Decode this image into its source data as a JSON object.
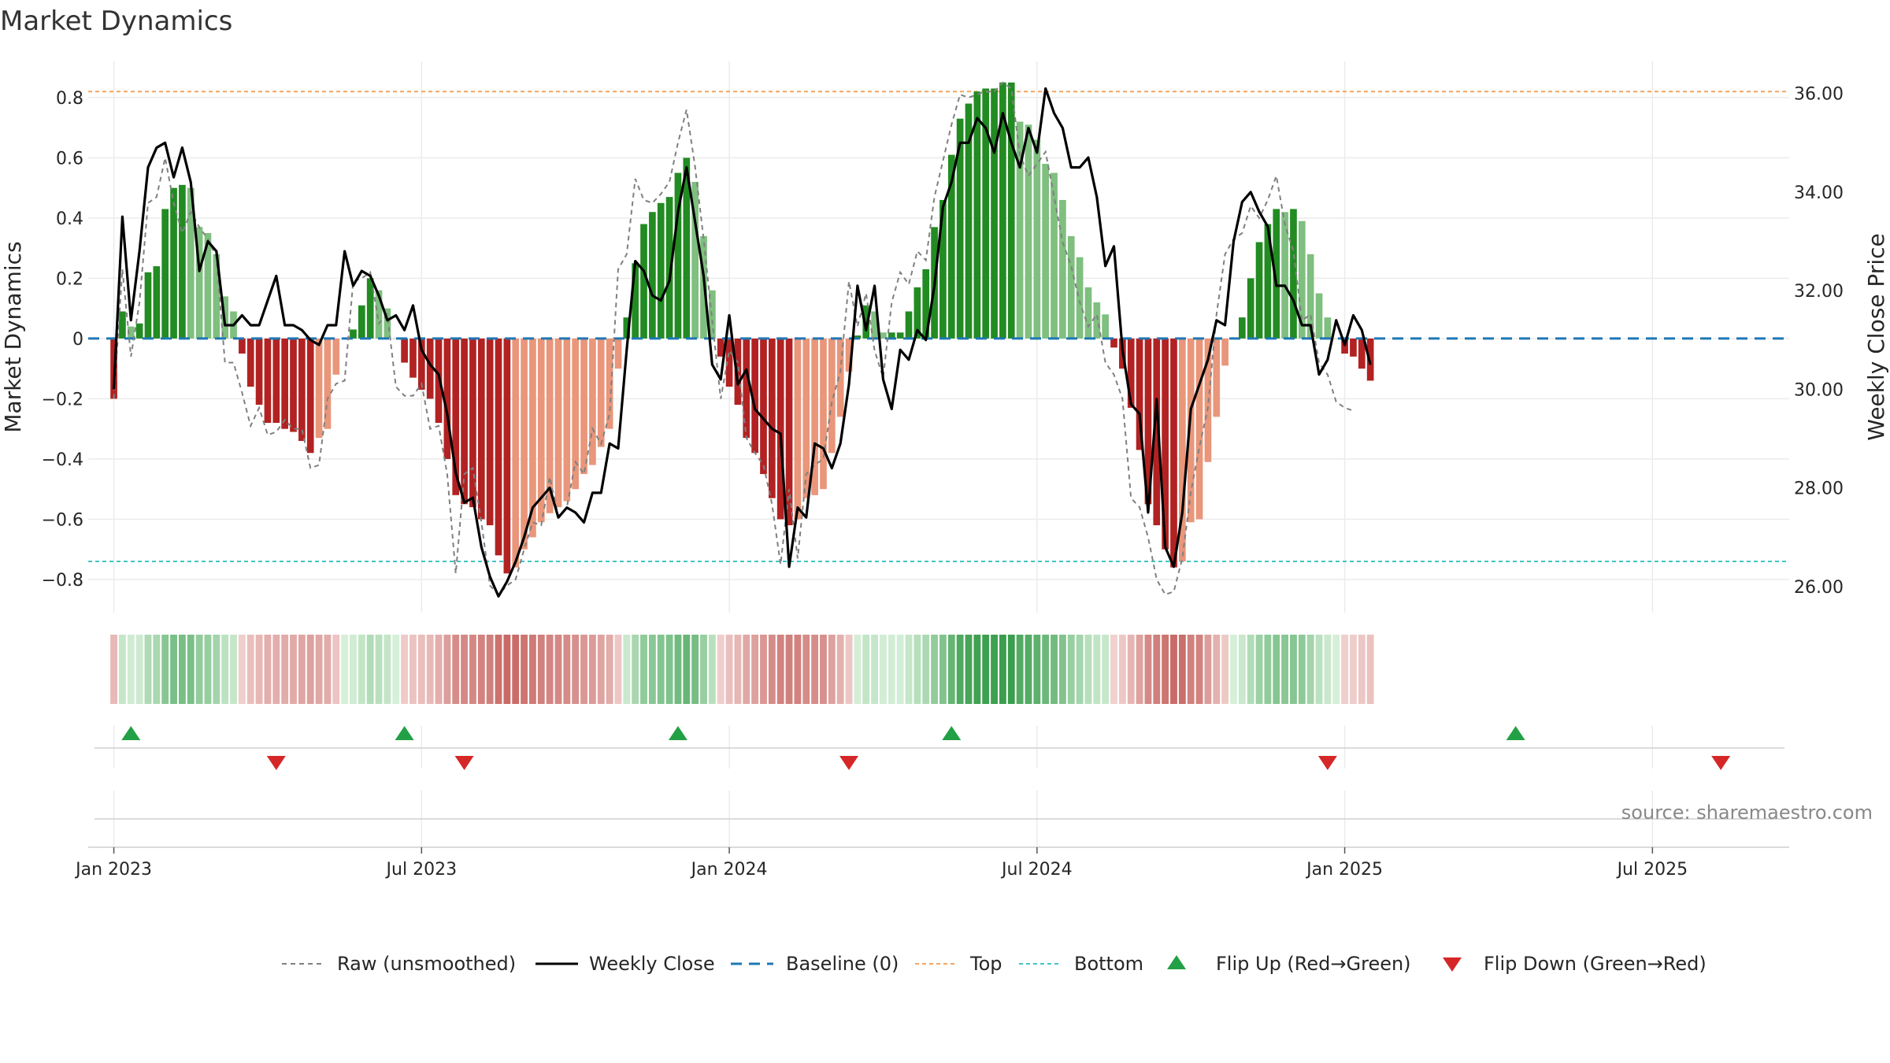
{
  "title": "Market Dynamics",
  "source": "source: sharemaestro.com",
  "colors": {
    "strong_green": "#228b22",
    "light_green": "#7fbf7f",
    "strong_red": "#b22222",
    "light_red": "#e9967a",
    "raw": "#808080",
    "close": "#000000",
    "baseline": "#1f77b4",
    "top": "#f4a460",
    "bottom": "#40c4c4",
    "flip_up": "#22a045",
    "flip_down": "#d62728"
  },
  "legend": {
    "raw": "Raw (unsmoothed)",
    "close": "Weekly Close",
    "baseline": "Baseline (0)",
    "top": "Top",
    "bottom": "Bottom",
    "flip_up": "Flip Up (Red→Green)",
    "flip_down": "Flip Down (Green→Red)"
  },
  "chart_data": {
    "type": "bar",
    "title": "Market Dynamics",
    "ylabel": "Market Dynamics",
    "y2label": "Weekly Close Price",
    "ylim": [
      -0.91,
      0.92
    ],
    "y2lim": [
      25.47,
      36.65
    ],
    "yticks": [
      -0.8,
      -0.6,
      -0.4,
      -0.2,
      0,
      0.2,
      0.4,
      0.6,
      0.8
    ],
    "ytick_labels": [
      "−0.8",
      "−0.6",
      "−0.4",
      "−0.2",
      "0",
      "0.2",
      "0.4",
      "0.6",
      "0.8"
    ],
    "y2ticks": [
      26,
      28,
      30,
      32,
      34,
      36
    ],
    "y2tick_labels": [
      "26.00",
      "28.00",
      "30.00",
      "32.00",
      "34.00",
      "36.00"
    ],
    "xlim": [
      -3,
      196
    ],
    "xticks": [
      0,
      36,
      72,
      108,
      144,
      180
    ],
    "xtick_labels": [
      "Jan 2023",
      "Jul 2023",
      "Jan 2024",
      "Jul 2024",
      "Jan 2025",
      "Jul 2025"
    ],
    "top_level": 0.82,
    "bottom_level": -0.74,
    "baseline": 0,
    "grid": true,
    "legend_position": "bottom",
    "dynamics": [
      -0.2,
      0.09,
      0.04,
      0.05,
      0.22,
      0.24,
      0.43,
      0.5,
      0.51,
      0.5,
      0.37,
      0.35,
      0.28,
      0.14,
      0.09,
      -0.05,
      -0.16,
      -0.22,
      -0.28,
      -0.28,
      -0.3,
      -0.31,
      -0.34,
      -0.38,
      -0.33,
      -0.3,
      -0.12,
      0,
      0.03,
      0.11,
      0.2,
      0.16,
      0.1,
      0,
      -0.08,
      -0.13,
      -0.17,
      -0.2,
      -0.28,
      -0.4,
      -0.52,
      -0.55,
      -0.56,
      -0.6,
      -0.62,
      -0.72,
      -0.78,
      -0.76,
      -0.7,
      -0.66,
      -0.61,
      -0.58,
      -0.56,
      -0.54,
      -0.5,
      -0.45,
      -0.42,
      -0.36,
      -0.3,
      -0.1,
      0.07,
      0.25,
      0.38,
      0.42,
      0.45,
      0.47,
      0.55,
      0.6,
      0.52,
      0.34,
      0.16,
      -0.06,
      -0.16,
      -0.22,
      -0.33,
      -0.38,
      -0.45,
      -0.53,
      -0.6,
      -0.62,
      -0.6,
      -0.53,
      -0.52,
      -0.5,
      -0.38,
      -0.26,
      -0.11,
      0.01,
      0.11,
      0.09,
      0.02,
      0.02,
      0.02,
      0.09,
      0.17,
      0.23,
      0.37,
      0.46,
      0.61,
      0.73,
      0.78,
      0.82,
      0.83,
      0.83,
      0.85,
      0.85,
      0.72,
      0.71,
      0.66,
      0.58,
      0.55,
      0.46,
      0.34,
      0.27,
      0.17,
      0.12,
      0.08,
      -0.03,
      -0.1,
      -0.23,
      -0.37,
      -0.55,
      -0.62,
      -0.7,
      -0.76,
      -0.74,
      -0.61,
      -0.6,
      -0.41,
      -0.26,
      -0.09,
      0,
      0.07,
      0.2,
      0.32,
      0.38,
      0.43,
      0.42,
      0.43,
      0.39,
      0.28,
      0.15,
      0.07,
      0,
      -0.05,
      -0.06,
      -0.1,
      -0.14
    ],
    "raw": [
      -0.2,
      0.23,
      -0.06,
      0.12,
      0.45,
      0.47,
      0.6,
      0.45,
      0.35,
      0.42,
      0.37,
      0.33,
      0.27,
      -0.08,
      -0.08,
      -0.18,
      -0.29,
      -0.23,
      -0.32,
      -0.31,
      -0.27,
      -0.3,
      -0.3,
      -0.43,
      -0.42,
      -0.2,
      -0.15,
      -0.14,
      0.19,
      0.2,
      0.22,
      0.05,
      0.08,
      -0.16,
      -0.19,
      -0.19,
      -0.15,
      -0.3,
      -0.29,
      -0.45,
      -0.78,
      -0.45,
      -0.43,
      -0.61,
      -0.82,
      -0.85,
      -0.82,
      -0.8,
      -0.7,
      -0.61,
      -0.62,
      -0.46,
      -0.59,
      -0.56,
      -0.41,
      -0.45,
      -0.3,
      -0.35,
      -0.25,
      0.23,
      0.28,
      0.53,
      0.46,
      0.45,
      0.48,
      0.52,
      0.65,
      0.76,
      0.57,
      0.33,
      0.06,
      -0.2,
      -0.04,
      -0.08,
      -0.33,
      -0.38,
      -0.42,
      -0.55,
      -0.75,
      -0.5,
      -0.73,
      -0.45,
      -0.42,
      -0.4,
      -0.21,
      -0.11,
      0.19,
      0.04,
      0.15,
      -0.04,
      -0.13,
      0.12,
      0.22,
      0.18,
      0.29,
      0.26,
      0.47,
      0.59,
      0.71,
      0.81,
      0.8,
      0.81,
      0.82,
      0.82,
      0.85,
      0.83,
      0.61,
      0.54,
      0.58,
      0.62,
      0.47,
      0.32,
      0.24,
      0.12,
      0.04,
      0.08,
      -0.08,
      -0.12,
      -0.2,
      -0.53,
      -0.56,
      -0.66,
      -0.8,
      -0.85,
      -0.84,
      -0.73,
      -0.51,
      -0.36,
      -0.23,
      0.08,
      0.28,
      0.33,
      0.35,
      0.44,
      0.4,
      0.46,
      0.54,
      0.38,
      0.29,
      0.06,
      0.08,
      -0.08,
      -0.12,
      -0.21,
      -0.23,
      -0.24
    ],
    "close": [
      30,
      33.5,
      31.4,
      32.8,
      34.5,
      34.9,
      35,
      34.3,
      34.9,
      34.2,
      32.4,
      33,
      32.8,
      31.3,
      31.3,
      31.5,
      31.3,
      31.3,
      31.8,
      32.3,
      31.3,
      31.3,
      31.2,
      31,
      30.9,
      31.3,
      31.3,
      32.8,
      32.1,
      32.4,
      32.3,
      31.9,
      31.4,
      31.5,
      31.2,
      31.7,
      30.8,
      30.5,
      30.3,
      29.5,
      28.3,
      27.7,
      27.8,
      26.8,
      26.2,
      25.8,
      26.1,
      26.5,
      27,
      27.6,
      27.8,
      28,
      27.4,
      27.6,
      27.5,
      27.3,
      27.9,
      27.9,
      28.9,
      28.8,
      30.8,
      32.6,
      32.4,
      31.9,
      31.8,
      32.2,
      33.6,
      34.5,
      33.4,
      32.3,
      30.5,
      30.2,
      31.5,
      30.1,
      30.4,
      29.6,
      29.4,
      29.2,
      29.1,
      26.4,
      27.6,
      27.4,
      28.9,
      28.8,
      28.4,
      28.9,
      30.1,
      32.1,
      31.2,
      32.1,
      30.2,
      29.6,
      30.8,
      30.6,
      31.2,
      31,
      32.1,
      33.7,
      34.2,
      35,
      35,
      35.5,
      35.3,
      34.8,
      35.6,
      35,
      34.5,
      35.3,
      34.8,
      36.1,
      35.6,
      35.3,
      34.5,
      34.5,
      34.7,
      33.9,
      32.5,
      32.9,
      30.8,
      29.7,
      29.5,
      27.5,
      29.8,
      26.8,
      26.4,
      27.5,
      29.6,
      30.1,
      30.6,
      31.4,
      31.3,
      33,
      33.8,
      34,
      33.6,
      33.3,
      32.1,
      32.1,
      31.8,
      31.3,
      31.3,
      30.3,
      30.6,
      31.4,
      30.9,
      31.5,
      31.2,
      30.5
    ]
  },
  "flips": {
    "up": [
      2,
      34,
      66,
      98,
      164
    ],
    "down": [
      19,
      41,
      86,
      142,
      188
    ]
  }
}
